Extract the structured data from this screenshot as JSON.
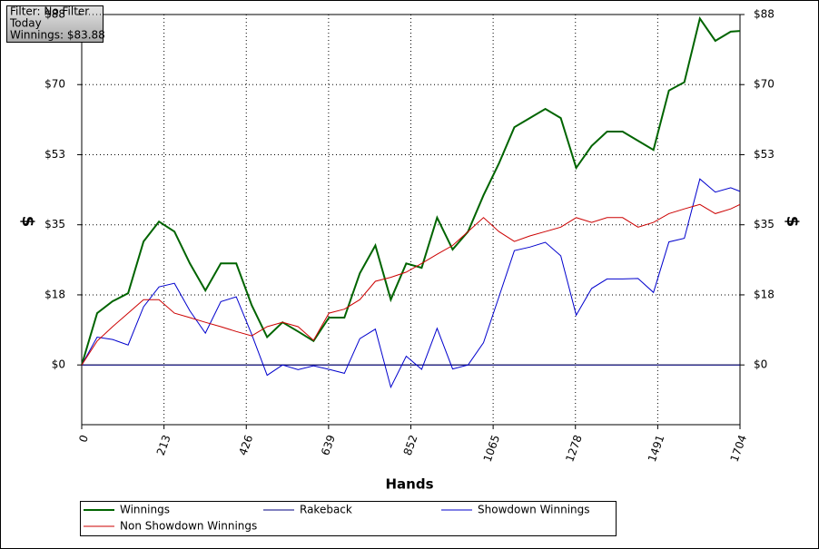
{
  "chart_data": {
    "type": "line",
    "annotations": [
      "Filter: No Filter",
      "Today",
      "Winnings: $83.88"
    ],
    "xlabel": "Hands",
    "ylabel": "$",
    "y2label": "$",
    "x": [
      0,
      40,
      80,
      120,
      160,
      200,
      240,
      280,
      320,
      360,
      400,
      440,
      480,
      520,
      560,
      600,
      640,
      680,
      720,
      760,
      800,
      840,
      880,
      920,
      960,
      1000,
      1040,
      1080,
      1120,
      1160,
      1200,
      1240,
      1280,
      1320,
      1360,
      1400,
      1440,
      1480,
      1520,
      1560,
      1600,
      1640,
      1680,
      1704
    ],
    "series": [
      {
        "name": "Winnings",
        "color": "#006400",
        "values": [
          0,
          13,
          16,
          18,
          31,
          36,
          33.5,
          25.5,
          18.7,
          25.5,
          25.5,
          15,
          7,
          10.7,
          8.4,
          6,
          11.9,
          11.9,
          23,
          30,
          16.4,
          25.5,
          24.4,
          37,
          29,
          33.5,
          42.6,
          50.6,
          59.7,
          62,
          64.3,
          62,
          49.5,
          55,
          58.6,
          58.6,
          56.3,
          54,
          68.9,
          71,
          87,
          81.4,
          83.7,
          83.88
        ]
      },
      {
        "name": "Rakeback",
        "color": "#000080",
        "values": [
          0,
          0,
          0,
          0,
          0,
          0,
          0,
          0,
          0,
          0,
          0,
          0,
          0,
          0,
          0,
          0,
          0,
          0,
          0,
          0,
          0,
          0,
          0,
          0,
          0,
          0,
          0,
          0,
          0,
          0,
          0,
          0,
          0,
          0,
          0,
          0,
          0,
          0,
          0,
          0,
          0,
          0,
          0,
          0
        ]
      },
      {
        "name": "Showdown Winnings",
        "color": "#0000cd",
        "values": [
          0,
          7,
          6.4,
          5,
          14.6,
          19.6,
          20.5,
          13.6,
          8,
          15.9,
          17.1,
          7.7,
          -2.6,
          0,
          -1.2,
          -0.2,
          -1.1,
          -2.1,
          6.6,
          9,
          -5.6,
          2.2,
          -1.1,
          9.2,
          -1,
          0,
          5.6,
          17.1,
          28.7,
          29.6,
          30.8,
          27.4,
          12.5,
          19.2,
          21.6,
          21.6,
          21.7,
          18.2,
          30.9,
          31.8,
          46.7,
          43.4,
          44.5,
          43.58
        ]
      },
      {
        "name": "Non Showdown Winnings",
        "color": "#cc0000",
        "values": [
          0,
          6,
          9.6,
          13,
          16.4,
          16.4,
          13,
          11.9,
          10.7,
          9.6,
          8.4,
          7.3,
          9.6,
          10.7,
          9.6,
          6.2,
          13,
          14,
          16.4,
          21,
          22,
          23.3,
          25.5,
          27.8,
          30,
          33.5,
          37,
          33.5,
          31,
          32.4,
          33.5,
          34.6,
          37,
          35.8,
          37,
          37,
          34.6,
          35.8,
          38,
          39.2,
          40.3,
          38,
          39.2,
          40.3
        ]
      }
    ],
    "xlim": [
      0,
      1704
    ],
    "xticks": [
      0,
      213,
      426,
      639,
      852,
      1065,
      1278,
      1491,
      1704
    ],
    "ylim": [
      -15,
      88
    ],
    "yticks": [
      {
        "value": 0,
        "label": "$0"
      },
      {
        "value": 17.6,
        "label": "$18"
      },
      {
        "value": 35.2,
        "label": "$35"
      },
      {
        "value": 52.8,
        "label": "$53"
      },
      {
        "value": 70.4,
        "label": "$70"
      },
      {
        "value": 88,
        "label": "$88"
      }
    ],
    "grid": true,
    "legend": "bottom"
  }
}
